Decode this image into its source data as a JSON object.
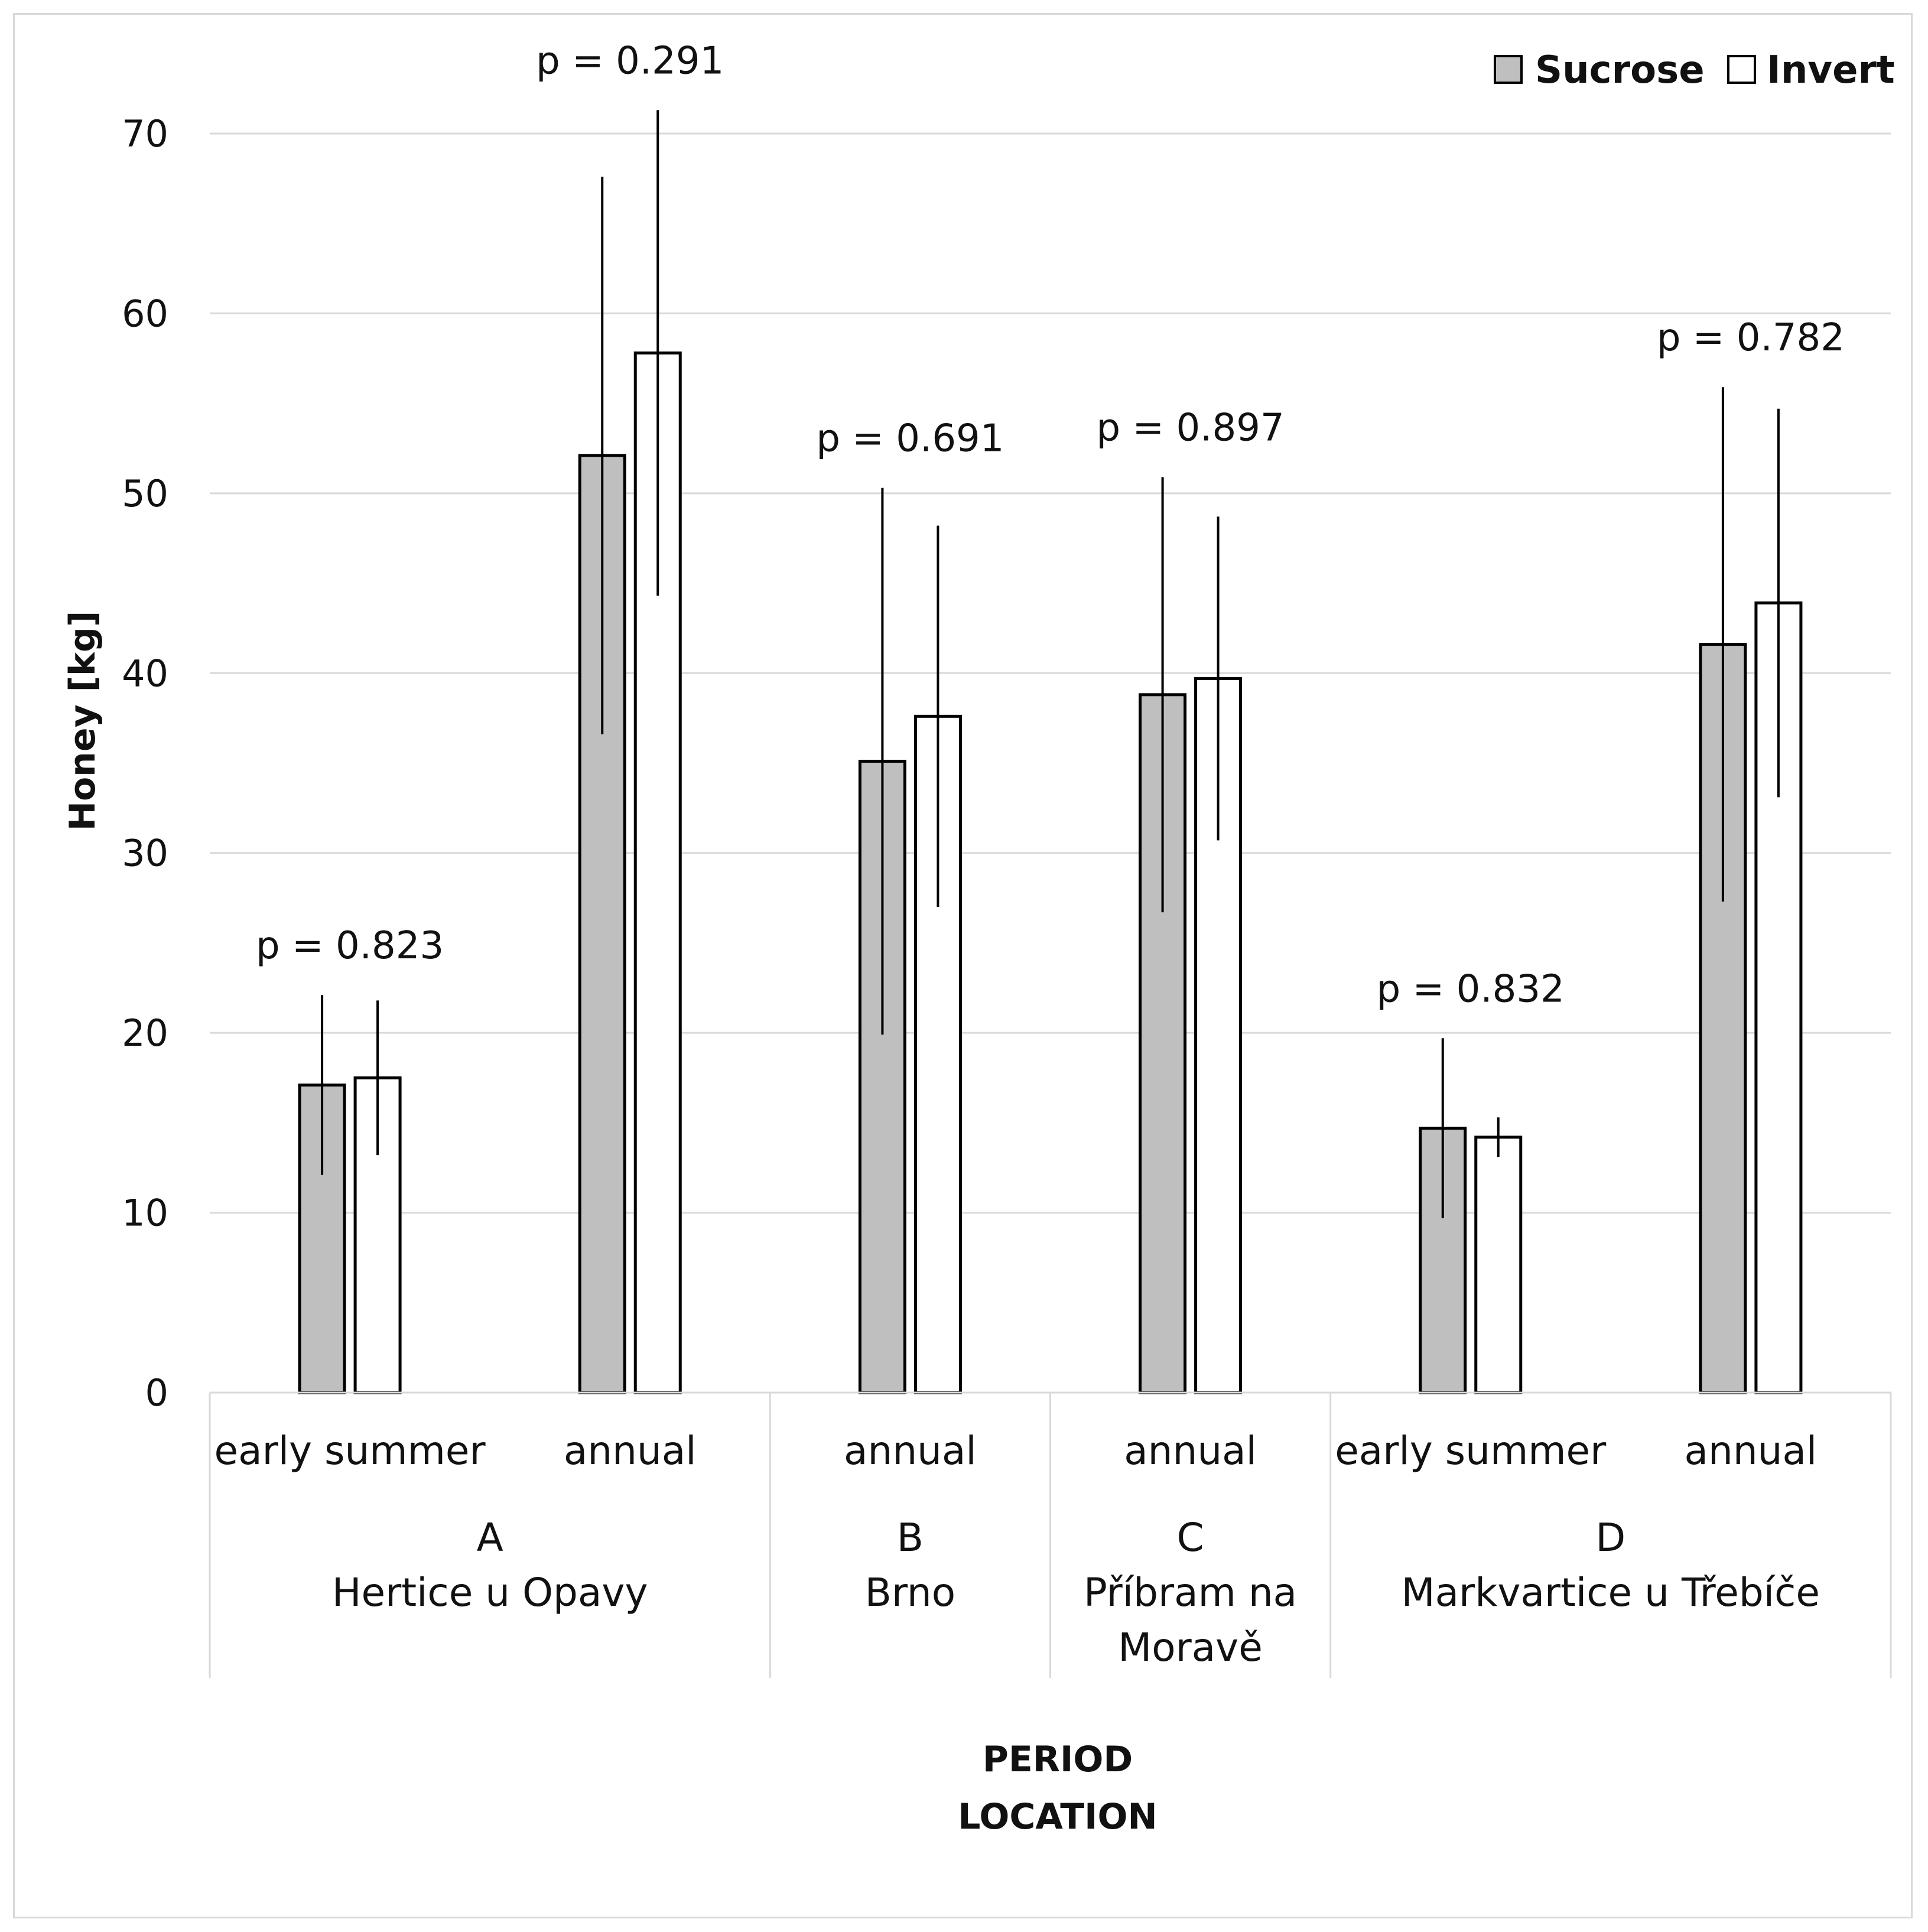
{
  "chart_data": {
    "type": "bar",
    "title": "",
    "ylabel": "Honey [kg]",
    "xlabel_lines": [
      "PERIOD",
      "LOCATION"
    ],
    "ylim": [
      0,
      70
    ],
    "yticks": [
      "0",
      "10",
      "20",
      "30",
      "40",
      "50",
      "60",
      "70"
    ],
    "legend": {
      "position": "top-right",
      "entries": [
        {
          "name": "Sucrose",
          "color": "#bfbfbf"
        },
        {
          "name": "Invert",
          "color": "#ffffff"
        }
      ]
    },
    "categories": [
      {
        "period": "early summer",
        "group": 0
      },
      {
        "period": "annual",
        "group": 0
      },
      {
        "period": "annual",
        "group": 1
      },
      {
        "period": "annual",
        "group": 2
      },
      {
        "period": "early summer",
        "group": 3
      },
      {
        "period": "annual",
        "group": 3
      }
    ],
    "groups": [
      {
        "letter": "A",
        "name_lines": [
          "Hertice u Opavy"
        ]
      },
      {
        "letter": "B",
        "name_lines": [
          "Brno"
        ]
      },
      {
        "letter": "C",
        "name_lines": [
          "Příbram na",
          "Moravě"
        ]
      },
      {
        "letter": "D",
        "name_lines": [
          "Markvartice u Třebíče"
        ]
      }
    ],
    "series": [
      {
        "name": "Sucrose",
        "values": [
          17.1,
          52.1,
          35.1,
          38.8,
          14.7,
          41.6
        ],
        "errors": [
          5.0,
          15.5,
          15.2,
          12.1,
          5.0,
          14.3
        ]
      },
      {
        "name": "Invert",
        "values": [
          17.5,
          57.8,
          37.6,
          39.7,
          14.2,
          43.9
        ],
        "errors": [
          4.3,
          13.5,
          10.6,
          9.0,
          1.1,
          10.8
        ]
      }
    ],
    "p_values": [
      "p = 0.823",
      "p = 0.291",
      "p = 0.691",
      "p = 0.897",
      "p = 0.832",
      "p = 0.782"
    ]
  }
}
